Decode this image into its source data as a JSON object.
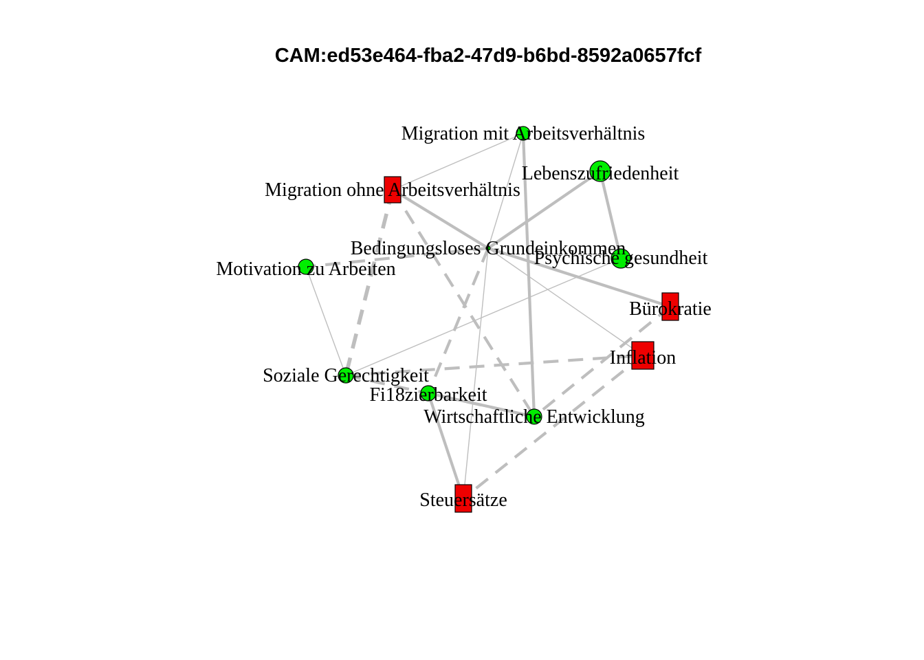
{
  "title": "CAM:ed53e464-fba2-47d9-b6bd-8592a0657fcf",
  "colors": {
    "positive": "#00ee00",
    "negative": "#ee0000",
    "edge": "#bebebe",
    "outline": "#000000"
  },
  "nodes": [
    {
      "id": "mma",
      "label": "Migration mit Arbeitsverhältnis",
      "valence": "positive",
      "shape": "circle"
    },
    {
      "id": "lz",
      "label": "Lebenszufriedenheit",
      "valence": "positive",
      "shape": "circle"
    },
    {
      "id": "moa",
      "label": "Migration ohne Arbeitsverhältnis",
      "valence": "negative",
      "shape": "rect"
    },
    {
      "id": "bge",
      "label": "Bedingungsloses Grundeinkommen",
      "valence": "positive",
      "shape": "circle"
    },
    {
      "id": "pg",
      "label": "Psychische gesundheit",
      "valence": "positive",
      "shape": "circle"
    },
    {
      "id": "mza",
      "label": "Motivation zu Arbeiten",
      "valence": "positive",
      "shape": "circle"
    },
    {
      "id": "bk",
      "label": "Bürokratie",
      "valence": "negative",
      "shape": "rect"
    },
    {
      "id": "inf",
      "label": "Inflation",
      "valence": "negative",
      "shape": "rect"
    },
    {
      "id": "sg",
      "label": "Soziale Gerechtigkeit",
      "valence": "positive",
      "shape": "circle"
    },
    {
      "id": "fin",
      "label": "Fi18zierbarkeit",
      "valence": "positive",
      "shape": "circle"
    },
    {
      "id": "we",
      "label": "Wirtschaftliche Entwicklung",
      "valence": "positive",
      "shape": "circle"
    },
    {
      "id": "st",
      "label": "Steuersätze",
      "valence": "negative",
      "shape": "rect"
    }
  ],
  "edges": [
    {
      "from": "mma",
      "to": "moa",
      "style": "solid",
      "weight": 1
    },
    {
      "from": "mma",
      "to": "bge",
      "style": "solid",
      "weight": 1
    },
    {
      "from": "mma",
      "to": "we",
      "style": "solid",
      "weight": 3
    },
    {
      "from": "lz",
      "to": "bge",
      "style": "solid",
      "weight": 3
    },
    {
      "from": "lz",
      "to": "pg",
      "style": "solid",
      "weight": 3
    },
    {
      "from": "moa",
      "to": "bge",
      "style": "solid",
      "weight": 3
    },
    {
      "from": "moa",
      "to": "sg",
      "style": "dashed",
      "weight": 4
    },
    {
      "from": "moa",
      "to": "we",
      "style": "dashed",
      "weight": 3
    },
    {
      "from": "bge",
      "to": "bk",
      "style": "solid",
      "weight": 3
    },
    {
      "from": "bge",
      "to": "inf",
      "style": "solid",
      "weight": 1
    },
    {
      "from": "bge",
      "to": "mza",
      "style": "dashed",
      "weight": 3
    },
    {
      "from": "bge",
      "to": "fin",
      "style": "dashed",
      "weight": 3
    },
    {
      "from": "bge",
      "to": "st",
      "style": "solid",
      "weight": 1
    },
    {
      "from": "pg",
      "to": "sg",
      "style": "solid",
      "weight": 1
    },
    {
      "from": "mza",
      "to": "sg",
      "style": "solid",
      "weight": 1
    },
    {
      "from": "sg",
      "to": "inf",
      "style": "dashed",
      "weight": 3
    },
    {
      "from": "bk",
      "to": "we",
      "style": "dashed",
      "weight": 3
    },
    {
      "from": "fin",
      "to": "we",
      "style": "solid",
      "weight": 3
    },
    {
      "from": "fin",
      "to": "st",
      "style": "solid",
      "weight": 3
    },
    {
      "from": "inf",
      "to": "st",
      "style": "dashed",
      "weight": 3
    },
    {
      "from": "sg",
      "to": "we",
      "style": "dashed",
      "weight": 3
    }
  ]
}
